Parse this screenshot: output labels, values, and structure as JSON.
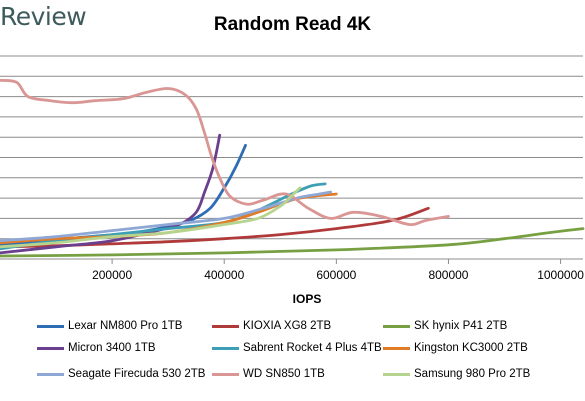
{
  "brand": "Review",
  "colors": {
    "background": "#ffffff",
    "gridline": "#8c8c8c",
    "axis": "#8c8c8c",
    "text": "#000000",
    "brand": "#3d5a5c"
  },
  "chart_data": {
    "type": "line",
    "title": "Random Read 4K",
    "xlabel": "IOPS",
    "ylabel": "",
    "xlim": [
      0,
      1040000
    ],
    "ylim": [
      0,
      100
    ],
    "xticks": [
      200000,
      400000,
      600000,
      800000,
      1000000
    ],
    "xtick_labels": [
      "200000",
      "400000",
      "600000",
      "800000",
      "1000000"
    ],
    "y_gridlines": [
      10,
      20,
      30,
      40,
      50,
      60,
      70,
      80,
      90,
      100
    ],
    "grid": true,
    "legend_position": "bottom",
    "series": [
      {
        "name": "Lexar NM800 Pro 1TB",
        "color": "#2e6db4",
        "points": [
          [
            0,
            7
          ],
          [
            80000,
            9
          ],
          [
            160000,
            11
          ],
          [
            240000,
            13
          ],
          [
            300000,
            16
          ],
          [
            340000,
            19
          ],
          [
            375000,
            25
          ],
          [
            400000,
            35
          ],
          [
            420000,
            45
          ],
          [
            438000,
            56
          ]
        ]
      },
      {
        "name": "KIOXIA XG8 2TB",
        "color": "#b03a3a",
        "points": [
          [
            0,
            6
          ],
          [
            100000,
            6.5
          ],
          [
            200000,
            7.5
          ],
          [
            300000,
            8.5
          ],
          [
            400000,
            10
          ],
          [
            500000,
            12
          ],
          [
            600000,
            15
          ],
          [
            700000,
            19
          ],
          [
            764000,
            25
          ]
        ]
      },
      {
        "name": "SK hynix P41 2TB",
        "color": "#77a043",
        "points": [
          [
            0,
            1.5
          ],
          [
            200000,
            2
          ],
          [
            400000,
            3
          ],
          [
            600000,
            4.5
          ],
          [
            800000,
            7
          ],
          [
            900000,
            10
          ],
          [
            980000,
            13
          ],
          [
            1040000,
            15
          ]
        ]
      },
      {
        "name": "Micron 3400 1TB",
        "color": "#6a3f8e",
        "points": [
          [
            0,
            3
          ],
          [
            100000,
            6
          ],
          [
            200000,
            9
          ],
          [
            280000,
            14
          ],
          [
            320000,
            17
          ],
          [
            350000,
            23
          ],
          [
            365000,
            33
          ],
          [
            380000,
            45
          ],
          [
            392000,
            61
          ]
        ]
      },
      {
        "name": "Sabrent Rocket 4 Plus 4TB",
        "color": "#3d9fb5",
        "points": [
          [
            0,
            5
          ],
          [
            100000,
            9
          ],
          [
            200000,
            12
          ],
          [
            300000,
            15
          ],
          [
            400000,
            18
          ],
          [
            460000,
            24
          ],
          [
            520000,
            32
          ],
          [
            555000,
            36
          ],
          [
            580000,
            37
          ]
        ]
      },
      {
        "name": "Kingston KC3000 2TB",
        "color": "#e07b28",
        "points": [
          [
            0,
            8
          ],
          [
            100000,
            10
          ],
          [
            200000,
            11
          ],
          [
            300000,
            13
          ],
          [
            400000,
            18
          ],
          [
            460000,
            23
          ],
          [
            520000,
            29
          ],
          [
            560000,
            31
          ],
          [
            600000,
            32
          ]
        ]
      },
      {
        "name": "Seagate Firecuda 530 2TB",
        "color": "#8fa7d4",
        "points": [
          [
            0,
            9
          ],
          [
            100000,
            11
          ],
          [
            200000,
            14
          ],
          [
            300000,
            17
          ],
          [
            400000,
            20
          ],
          [
            470000,
            25
          ],
          [
            530000,
            30
          ],
          [
            570000,
            32
          ],
          [
            590000,
            33
          ]
        ]
      },
      {
        "name": "WD SN850 1TB",
        "color": "#d99694",
        "points": [
          [
            0,
            88
          ],
          [
            30000,
            87
          ],
          [
            50000,
            80
          ],
          [
            90000,
            78
          ],
          [
            130000,
            77
          ],
          [
            170000,
            78
          ],
          [
            220000,
            79
          ],
          [
            260000,
            82
          ],
          [
            300000,
            84
          ],
          [
            330000,
            81
          ],
          [
            350000,
            74
          ],
          [
            365000,
            62
          ],
          [
            378000,
            50
          ],
          [
            392000,
            40
          ],
          [
            410000,
            31
          ],
          [
            440000,
            27
          ],
          [
            470000,
            29
          ],
          [
            510000,
            32
          ],
          [
            550000,
            25
          ],
          [
            590000,
            20
          ],
          [
            630000,
            23
          ],
          [
            680000,
            21
          ],
          [
            730000,
            17
          ],
          [
            760000,
            19
          ],
          [
            800000,
            21
          ]
        ]
      },
      {
        "name": "Samsung 980 Pro 2TB",
        "color": "#b7d48e",
        "points": [
          [
            0,
            6
          ],
          [
            100000,
            8
          ],
          [
            200000,
            11
          ],
          [
            300000,
            13
          ],
          [
            400000,
            17
          ],
          [
            460000,
            20
          ],
          [
            500000,
            26
          ],
          [
            520000,
            31
          ],
          [
            535000,
            35
          ]
        ]
      }
    ]
  }
}
